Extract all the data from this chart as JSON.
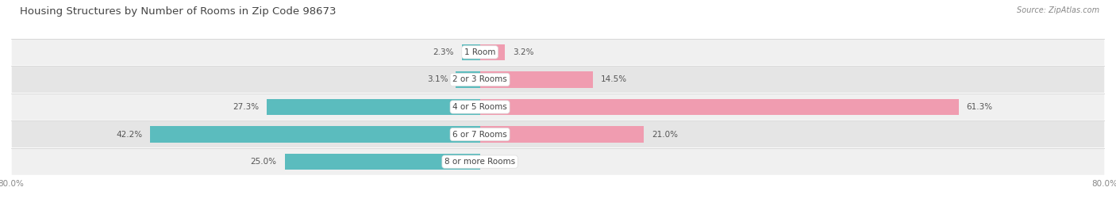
{
  "title": "Housing Structures by Number of Rooms in Zip Code 98673",
  "source": "Source: ZipAtlas.com",
  "categories": [
    "1 Room",
    "2 or 3 Rooms",
    "4 or 5 Rooms",
    "6 or 7 Rooms",
    "8 or more Rooms"
  ],
  "owner_values": [
    2.3,
    3.1,
    27.3,
    42.2,
    25.0
  ],
  "renter_values": [
    3.2,
    14.5,
    61.3,
    21.0,
    0.0
  ],
  "owner_color": "#5bbcbe",
  "renter_color": "#f09cb0",
  "row_bg_colors": [
    "#f0f0f0",
    "#e5e5e5"
  ],
  "xlim_left": -60.0,
  "xlim_right": 80.0,
  "title_fontsize": 9.5,
  "source_fontsize": 7,
  "label_fontsize": 7.5,
  "value_fontsize": 7.5,
  "legend_fontsize": 7.5,
  "axis_label_fontsize": 7.5
}
